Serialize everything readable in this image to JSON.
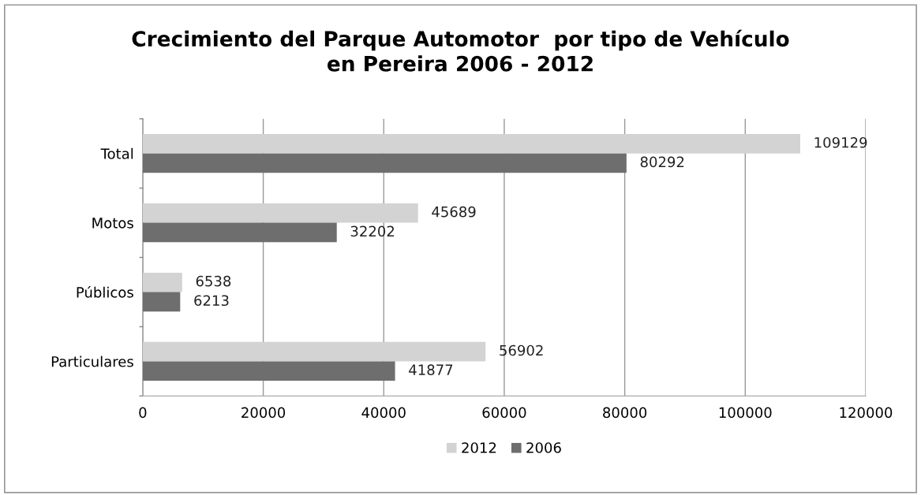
{
  "chart_data": {
    "type": "bar",
    "orientation": "horizontal",
    "title": "Crecimiento del Parque Automotor  por tipo de Vehículo\nen Pereira 2006 - 2012",
    "categories": [
      "Total",
      "Motos",
      "Públicos",
      "Particulares"
    ],
    "series": [
      {
        "name": "2012",
        "color": "#d3d3d3",
        "values": [
          109129,
          45689,
          6538,
          56902
        ]
      },
      {
        "name": "2006",
        "color": "#6e6e6e",
        "values": [
          80292,
          32202,
          6213,
          41877
        ]
      }
    ],
    "xlim": [
      0,
      120000
    ],
    "xticks": [
      0,
      20000,
      40000,
      60000,
      80000,
      100000,
      120000
    ],
    "grid": "x",
    "legend": "bottom",
    "data_labels": true
  }
}
